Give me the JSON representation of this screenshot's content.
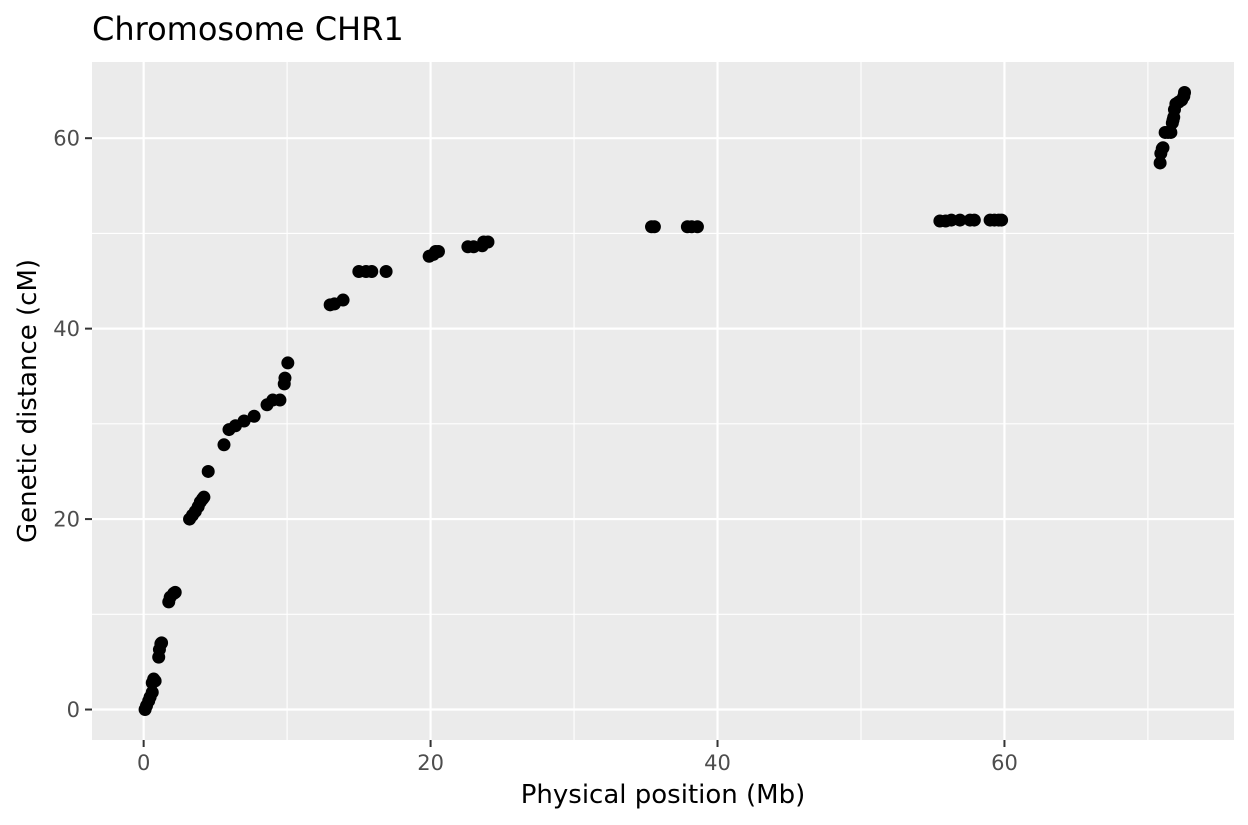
{
  "chart_data": {
    "type": "scatter",
    "title": "Chromosome CHR1",
    "xlabel": "Physical position (Mb)",
    "ylabel": "Genetic distance (cM)",
    "xlim": [
      -3.6,
      76.0
    ],
    "ylim": [
      -3.2,
      68.0
    ],
    "x_ticks": [
      0,
      20,
      40,
      60
    ],
    "y_ticks": [
      0,
      20,
      40,
      60
    ],
    "x_tick_labels": [
      "0",
      "20",
      "40",
      "60"
    ],
    "y_tick_labels": [
      "0",
      "20",
      "40",
      "60"
    ],
    "grid": true,
    "colors": {
      "panel": "#ebebeb",
      "grid": "#ffffff",
      "point": "#000000",
      "tick_text": "#4d4d4d"
    },
    "points": [
      [
        0.1,
        0.0
      ],
      [
        0.2,
        0.4
      ],
      [
        0.35,
        0.9
      ],
      [
        0.45,
        1.3
      ],
      [
        0.6,
        1.8
      ],
      [
        0.6,
        2.8
      ],
      [
        0.7,
        3.2
      ],
      [
        0.8,
        3.0
      ],
      [
        1.05,
        5.5
      ],
      [
        1.1,
        6.3
      ],
      [
        1.2,
        6.9
      ],
      [
        1.25,
        7.0
      ],
      [
        1.75,
        11.3
      ],
      [
        1.85,
        11.8
      ],
      [
        2.1,
        12.2
      ],
      [
        2.2,
        12.3
      ],
      [
        3.2,
        20.0
      ],
      [
        3.4,
        20.4
      ],
      [
        3.6,
        20.8
      ],
      [
        3.8,
        21.3
      ],
      [
        3.95,
        21.8
      ],
      [
        4.1,
        22.1
      ],
      [
        4.2,
        22.3
      ],
      [
        4.5,
        25.0
      ],
      [
        5.6,
        27.8
      ],
      [
        5.95,
        29.4
      ],
      [
        6.4,
        29.8
      ],
      [
        7.0,
        30.3
      ],
      [
        7.7,
        30.8
      ],
      [
        8.6,
        32.0
      ],
      [
        9.0,
        32.5
      ],
      [
        9.5,
        32.5
      ],
      [
        9.8,
        34.2
      ],
      [
        9.85,
        34.8
      ],
      [
        10.05,
        36.4
      ],
      [
        13.0,
        42.5
      ],
      [
        13.3,
        42.6
      ],
      [
        13.9,
        43.0
      ],
      [
        15.0,
        46.0
      ],
      [
        15.5,
        46.0
      ],
      [
        15.9,
        46.0
      ],
      [
        16.9,
        46.0
      ],
      [
        19.9,
        47.6
      ],
      [
        20.2,
        47.8
      ],
      [
        20.35,
        48.1
      ],
      [
        20.55,
        48.1
      ],
      [
        22.6,
        48.6
      ],
      [
        23.0,
        48.6
      ],
      [
        23.6,
        48.7
      ],
      [
        23.7,
        49.1
      ],
      [
        24.0,
        49.1
      ],
      [
        35.4,
        50.7
      ],
      [
        35.6,
        50.7
      ],
      [
        37.9,
        50.7
      ],
      [
        38.2,
        50.7
      ],
      [
        38.6,
        50.7
      ],
      [
        55.5,
        51.3
      ],
      [
        55.9,
        51.3
      ],
      [
        56.3,
        51.4
      ],
      [
        56.9,
        51.4
      ],
      [
        57.6,
        51.4
      ],
      [
        57.9,
        51.4
      ],
      [
        59.0,
        51.4
      ],
      [
        59.3,
        51.4
      ],
      [
        59.6,
        51.4
      ],
      [
        59.8,
        51.4
      ],
      [
        70.85,
        57.4
      ],
      [
        70.9,
        58.4
      ],
      [
        71.0,
        58.9
      ],
      [
        71.05,
        59.0
      ],
      [
        71.2,
        60.6
      ],
      [
        71.4,
        60.6
      ],
      [
        71.6,
        60.6
      ],
      [
        71.7,
        61.6
      ],
      [
        71.75,
        61.9
      ],
      [
        71.8,
        62.2
      ],
      [
        71.85,
        63.0
      ],
      [
        71.95,
        63.6
      ],
      [
        72.15,
        63.8
      ],
      [
        72.35,
        64.0
      ],
      [
        72.5,
        64.4
      ],
      [
        72.55,
        64.8
      ]
    ]
  }
}
